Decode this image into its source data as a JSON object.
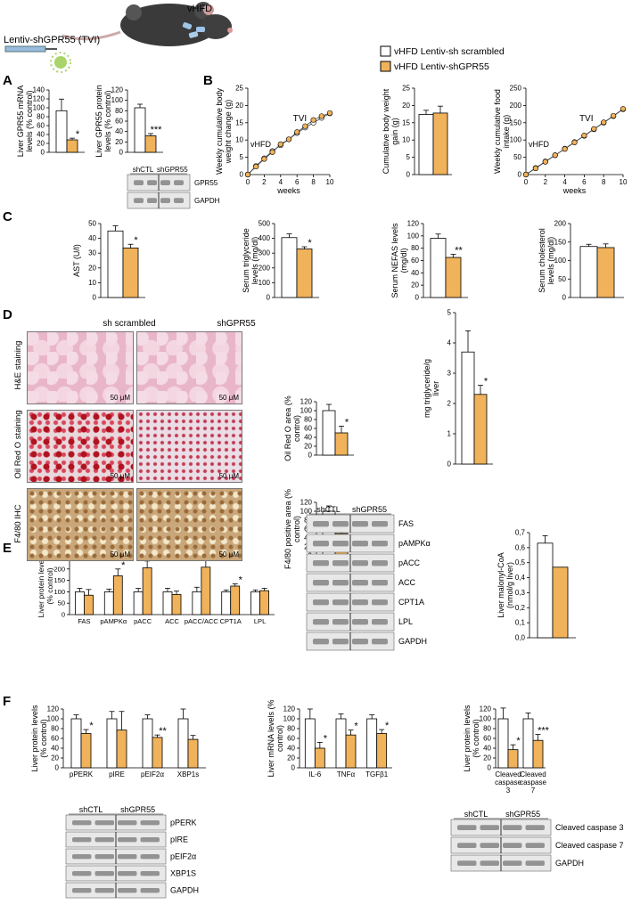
{
  "legend": {
    "labels": [
      "vHFD Lentiv-sh scrambled",
      "vHFD Lentiv-shGPR55"
    ],
    "colors": [
      "#ffffff",
      "#f0b25a"
    ]
  },
  "header": {
    "vector_label": "Lentiv-shGPR55 (TVI)",
    "diet_label": "vHFD"
  },
  "panel_letters": [
    "A",
    "B",
    "C",
    "D",
    "E",
    "F"
  ],
  "blots": {
    "a": {
      "groups": [
        "shCTL",
        "shGPR55"
      ],
      "bands": [
        "GPR55",
        "GAPDH"
      ]
    },
    "e": {
      "groups": [
        "shCTL",
        "shGPR55"
      ],
      "bands": [
        "FAS",
        "pAMPKα",
        "pACC",
        "ACC",
        "CPT1A",
        "LPL",
        "GAPDH"
      ]
    },
    "f1": {
      "groups": [
        "shCTL",
        "shGPR55"
      ],
      "bands": [
        "pPERK",
        "pIRE",
        "pEIF2α",
        "XBP1S",
        "GAPDH"
      ]
    },
    "f3": {
      "groups": [
        "shCTL",
        "shGPR55"
      ],
      "bands": [
        "Cleaved caspase 3",
        "Cleaved caspase 7",
        "GAPDH"
      ]
    }
  },
  "micro": {
    "col_labels": [
      "sh scrambled",
      "shGPR55"
    ],
    "row_labels": [
      "H&E staining",
      "Oil Red O staining",
      "F4/80 IHC"
    ],
    "scale": "50 μM"
  },
  "chart_data": [
    {
      "id": "a1",
      "type": "bar",
      "ylabel": "Liver GPR55 mRNA levels (% control)",
      "ylim": [
        0,
        150
      ],
      "ticks": [
        0,
        20,
        40,
        60,
        80,
        100,
        120,
        140
      ],
      "categories": [
        ""
      ],
      "series": [
        {
          "values": [
            100
          ],
          "err": [
            28
          ]
        },
        {
          "values": [
            30
          ],
          "err": [
            4
          ]
        }
      ],
      "sig": [
        "*"
      ]
    },
    {
      "id": "a2",
      "type": "bar",
      "ylabel": "Liver GPR55 protein levels (% control)",
      "ylim": [
        0,
        140
      ],
      "ticks": [
        0,
        20,
        40,
        60,
        80,
        100,
        120
      ],
      "categories": [
        ""
      ],
      "series": [
        {
          "values": [
            100
          ],
          "err": [
            8
          ]
        },
        {
          "values": [
            37
          ],
          "err": [
            5
          ]
        }
      ],
      "sig": [
        "***"
      ]
    },
    {
      "id": "b1",
      "type": "line",
      "ylabel": "Weekly cumulative body weight change (g)",
      "xlabel": "weeks",
      "ylim": [
        0,
        25
      ],
      "ticks": [
        0,
        5,
        10,
        15,
        20,
        25
      ],
      "xlim": [
        0,
        10
      ],
      "xticks": [
        0,
        2,
        4,
        6,
        8,
        10
      ],
      "x": [
        0,
        1,
        2,
        3,
        4,
        5,
        6,
        7,
        8,
        9,
        10
      ],
      "series": [
        {
          "values": [
            0,
            2.5,
            4.7,
            6.8,
            8.5,
            10.2,
            12,
            13.6,
            15,
            16.4,
            17.7
          ]
        },
        {
          "values": [
            0,
            2.3,
            4.5,
            6.5,
            8.8,
            10.2,
            12.3,
            14,
            15.8,
            16.9,
            17.8
          ]
        }
      ],
      "annotations": [
        "vHFD",
        "TVI"
      ]
    },
    {
      "id": "b2",
      "type": "bar",
      "ylabel": "Cumulative body weight gain (g)",
      "ylim": [
        0,
        25
      ],
      "ticks": [
        0,
        5,
        10,
        15,
        20,
        25
      ],
      "categories": [
        ""
      ],
      "series": [
        {
          "values": [
            17.4
          ],
          "err": [
            1.2
          ]
        },
        {
          "values": [
            17.8
          ],
          "err": [
            2
          ]
        }
      ],
      "sig": [
        ""
      ]
    },
    {
      "id": "b3",
      "type": "line",
      "ylabel": "Weekly cumulative food intake (g)",
      "xlabel": "weeks",
      "ylim": [
        0,
        250
      ],
      "ticks": [
        0,
        50,
        100,
        150,
        200,
        250
      ],
      "xlim": [
        0,
        10
      ],
      "xticks": [
        0,
        2,
        4,
        6,
        8,
        10
      ],
      "x": [
        0,
        1,
        2,
        3,
        4,
        5,
        6,
        7,
        8,
        9,
        10
      ],
      "series": [
        {
          "values": [
            0,
            19,
            38,
            56,
            75,
            94,
            112,
            131,
            150,
            169,
            189
          ]
        },
        {
          "values": [
            0,
            18,
            37,
            56,
            74,
            93,
            113,
            132,
            151,
            170,
            190
          ]
        }
      ],
      "annotations": [
        "vHFD",
        "TVI"
      ]
    },
    {
      "id": "c1",
      "type": "bar",
      "ylabel": "AST (U/l)",
      "ylim": [
        0,
        50
      ],
      "ticks": [
        0,
        10,
        20,
        30,
        40,
        50
      ],
      "categories": [
        ""
      ],
      "series": [
        {
          "values": [
            45
          ],
          "err": [
            3.5
          ]
        },
        {
          "values": [
            33.5
          ],
          "err": [
            2.5
          ]
        }
      ],
      "sig": [
        "*"
      ]
    },
    {
      "id": "c2",
      "type": "bar",
      "ylabel": "Serum triglyceride levels (mg/dl)",
      "ylim": [
        0,
        500
      ],
      "ticks": [
        0,
        100,
        200,
        300,
        400,
        500
      ],
      "categories": [
        ""
      ],
      "series": [
        {
          "values": [
            405
          ],
          "err": [
            25
          ]
        },
        {
          "values": [
            328
          ],
          "err": [
            15
          ]
        }
      ],
      "sig": [
        "*"
      ]
    },
    {
      "id": "c3",
      "type": "bar",
      "ylabel": "Serum NEFAS levels (mg/dl)",
      "ylim": [
        0,
        120
      ],
      "ticks": [
        0,
        20,
        40,
        60,
        80,
        100,
        120
      ],
      "categories": [
        ""
      ],
      "series": [
        {
          "values": [
            96
          ],
          "err": [
            7
          ]
        },
        {
          "values": [
            65
          ],
          "err": [
            5
          ]
        }
      ],
      "sig": [
        "**"
      ]
    },
    {
      "id": "c4",
      "type": "bar",
      "ylabel": "Serum cholesterol levels (mg/dl)",
      "ylim": [
        0,
        200
      ],
      "ticks": [
        0,
        50,
        100,
        150,
        200
      ],
      "categories": [
        ""
      ],
      "series": [
        {
          "values": [
            138
          ],
          "err": [
            6
          ]
        },
        {
          "values": [
            135
          ],
          "err": [
            10
          ]
        }
      ],
      "sig": [
        ""
      ]
    },
    {
      "id": "d1",
      "type": "bar",
      "ylabel": "Oil Red O area (% control)",
      "ylim": [
        0,
        120
      ],
      "ticks": [
        0,
        20,
        40,
        60,
        80,
        100,
        120
      ],
      "categories": [
        ""
      ],
      "series": [
        {
          "values": [
            100
          ],
          "err": [
            14
          ]
        },
        {
          "values": [
            50
          ],
          "err": [
            15
          ]
        }
      ],
      "sig": [
        "*"
      ]
    },
    {
      "id": "d2",
      "type": "bar",
      "ylabel": "F4/80 positive area (% control)",
      "ylim": [
        0,
        120
      ],
      "ticks": [
        0,
        20,
        40,
        60,
        80,
        100,
        120
      ],
      "categories": [
        ""
      ],
      "series": [
        {
          "values": [
            100
          ],
          "err": [
            12
          ]
        },
        {
          "values": [
            50
          ],
          "err": [
            15
          ]
        }
      ],
      "sig": [
        "***"
      ]
    },
    {
      "id": "d3",
      "type": "bar",
      "ylabel": "mg triglyceride/g liver",
      "ylim": [
        0,
        5
      ],
      "ticks": [
        0,
        1,
        2,
        3,
        4,
        5
      ],
      "categories": [
        ""
      ],
      "series": [
        {
          "values": [
            3.7
          ],
          "err": [
            0.7
          ]
        },
        {
          "values": [
            2.3
          ],
          "err": [
            0.3
          ]
        }
      ],
      "sig": [
        "*"
      ]
    },
    {
      "id": "e1",
      "type": "bar",
      "ylabel": "Liver protein levels (% control)",
      "ylim": [
        0,
        250
      ],
      "ticks": [
        0,
        50,
        100,
        150,
        200,
        250
      ],
      "categories": [
        "FAS",
        "pAMPKα",
        "pACC",
        "ACC",
        "pACC/ACC",
        "CPT1A",
        "LPL"
      ],
      "series": [
        {
          "values": [
            100,
            100,
            100,
            100,
            100,
            100,
            100
          ],
          "err": [
            15,
            12,
            15,
            15,
            20,
            8,
            8
          ]
        },
        {
          "values": [
            85,
            170,
            205,
            88,
            208,
            125,
            105
          ],
          "err": [
            25,
            30,
            30,
            15,
            40,
            10,
            10
          ]
        }
      ],
      "sig": [
        "",
        "*",
        "**",
        "",
        "*",
        "*",
        ""
      ]
    },
    {
      "id": "e2",
      "type": "bar",
      "ylabel": "Liver malonyl-CoA (nmol/g liver)",
      "ylim": [
        0,
        0.7
      ],
      "ticks": [
        "0,0",
        "0,1",
        "0,2",
        "0,3",
        "0,4",
        "0,5",
        "0,6",
        "0,7"
      ],
      "categories": [
        ""
      ],
      "series": [
        {
          "values": [
            0.63
          ],
          "err": [
            0.05
          ]
        },
        {
          "values": [
            0.47
          ],
          "err": [
            0
          ]
        }
      ],
      "sig": [
        ""
      ]
    },
    {
      "id": "f1",
      "type": "bar",
      "ylabel": "Liver protein levels (% control)",
      "ylim": [
        0,
        120
      ],
      "ticks": [
        0,
        20,
        40,
        60,
        80,
        100,
        120
      ],
      "categories": [
        "pPERK",
        "pIRE",
        "pEIF2α",
        "XBP1s"
      ],
      "series": [
        {
          "values": [
            100,
            100,
            100,
            100
          ],
          "err": [
            8,
            15,
            8,
            20
          ]
        },
        {
          "values": [
            70,
            77,
            62,
            58
          ],
          "err": [
            8,
            38,
            5,
            8
          ]
        }
      ],
      "sig": [
        "*",
        "",
        "**",
        ""
      ]
    },
    {
      "id": "f2",
      "type": "bar",
      "ylabel": "Liver mRNA levels (% control)",
      "ylim": [
        0,
        120
      ],
      "ticks": [
        0,
        20,
        40,
        60,
        80,
        100,
        120
      ],
      "categories": [
        "IL-6",
        "TNFα",
        "TGFβ1"
      ],
      "series": [
        {
          "values": [
            100,
            100,
            100
          ],
          "err": [
            20,
            10,
            8
          ]
        },
        {
          "values": [
            40,
            67,
            70
          ],
          "err": [
            12,
            10,
            8
          ]
        }
      ],
      "sig": [
        "*",
        "*",
        "*"
      ]
    },
    {
      "id": "f3",
      "type": "bar",
      "ylabel": "Liver protein levels (% control)",
      "ylim": [
        0,
        120
      ],
      "ticks": [
        0,
        20,
        40,
        60,
        80,
        100,
        120
      ],
      "categories": [
        "Cleaved caspase 3",
        "Cleaved caspase 7"
      ],
      "series": [
        {
          "values": [
            100,
            100
          ],
          "err": [
            22,
            12
          ]
        },
        {
          "values": [
            37,
            56
          ],
          "err": [
            10,
            12
          ]
        }
      ],
      "sig": [
        "*",
        "***"
      ]
    }
  ]
}
